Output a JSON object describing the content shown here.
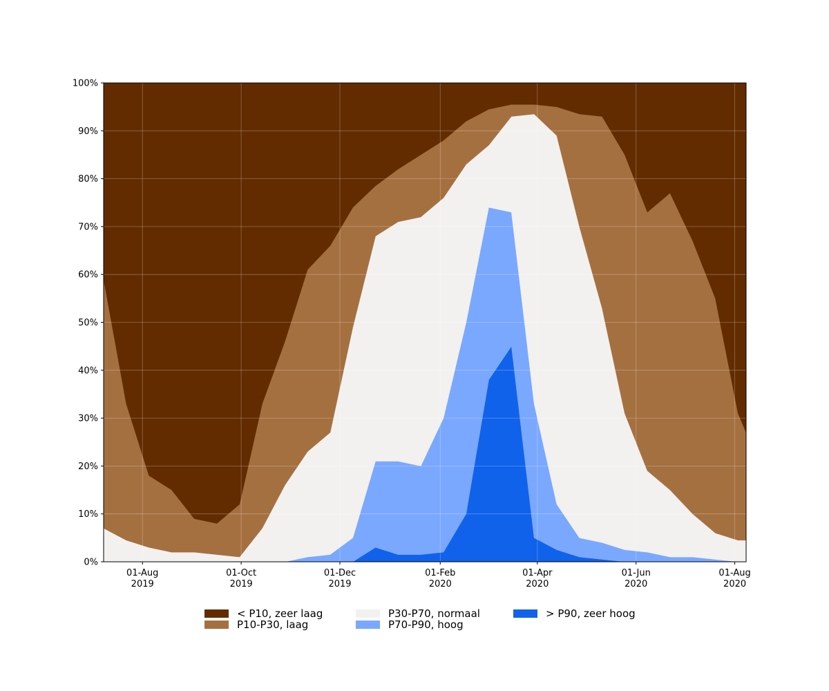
{
  "chart_data": {
    "type": "stacked-area",
    "x": [
      "2019-07-08",
      "2019-07-22",
      "2019-08-05",
      "2019-08-19",
      "2019-09-02",
      "2019-09-16",
      "2019-09-30",
      "2019-10-14",
      "2019-10-28",
      "2019-11-11",
      "2019-11-25",
      "2019-12-09",
      "2019-12-23",
      "2020-01-06",
      "2020-01-20",
      "2020-02-03",
      "2020-02-17",
      "2020-03-02",
      "2020-03-16",
      "2020-03-30",
      "2020-04-13",
      "2020-04-27",
      "2020-05-11",
      "2020-05-25",
      "2020-06-08",
      "2020-06-22",
      "2020-07-06",
      "2020-07-20",
      "2020-08-03",
      "2020-08-08"
    ],
    "series": [
      {
        "name": "> P90, zeer hoog",
        "color": "#1062ea",
        "values": [
          0,
          0,
          0,
          0,
          0,
          0,
          0,
          0,
          0,
          0,
          0,
          0,
          3,
          1.5,
          1.5,
          2,
          10,
          38,
          45,
          5,
          2.5,
          1,
          0.5,
          0,
          0,
          0,
          0,
          0,
          0,
          0
        ]
      },
      {
        "name": "P70-P90, hoog",
        "color": "#7aa8ff",
        "values": [
          0,
          0,
          0,
          0,
          0,
          0,
          0,
          0,
          0,
          1,
          1.5,
          5,
          18,
          19.5,
          18.5,
          28,
          40,
          36,
          28,
          28,
          9.5,
          4,
          3.5,
          2.5,
          2,
          1,
          1,
          0.5,
          0,
          0
        ]
      },
      {
        "name": "P30-P70, normaal",
        "color": "#f2f1f0",
        "values": [
          7,
          4.5,
          3,
          2,
          2,
          1.5,
          1,
          7,
          16,
          22,
          25.5,
          44,
          47,
          50,
          52,
          46,
          33,
          13,
          20,
          60.5,
          77,
          65,
          49,
          28.5,
          17,
          14,
          9,
          5.5,
          4.5,
          4.5
        ]
      },
      {
        "name": "P10-P30, laag",
        "color": "#a57040",
        "values": [
          52,
          28.5,
          15,
          13,
          7,
          6.5,
          11,
          26,
          30,
          38,
          39,
          25,
          10.5,
          11,
          13,
          12,
          9,
          7.5,
          2.5,
          2,
          6,
          23.5,
          40,
          54,
          54,
          62,
          57,
          49,
          26.5,
          22.5
        ]
      },
      {
        "name": "< P10, zeer laag",
        "color": "#622c00",
        "values": [
          41,
          67,
          82,
          85,
          91,
          92,
          88,
          67,
          54,
          39,
          34,
          26,
          21.5,
          18,
          15,
          12,
          8,
          5.5,
          4.5,
          4.5,
          5,
          6.5,
          7,
          15,
          27,
          23,
          33,
          45,
          69,
          73
        ]
      }
    ],
    "legend_order": [
      4,
      3,
      2,
      1,
      0
    ],
    "xlim": [
      "2019-07-08",
      "2020-08-08"
    ],
    "xticks": [
      {
        "value": "2019-08-01",
        "label": "01-Aug\n2019"
      },
      {
        "value": "2019-10-01",
        "label": "01-Oct\n2019"
      },
      {
        "value": "2019-12-01",
        "label": "01-Dec\n2019"
      },
      {
        "value": "2020-02-01",
        "label": "01-Feb\n2020"
      },
      {
        "value": "2020-04-01",
        "label": "01-Apr\n2020"
      },
      {
        "value": "2020-06-01",
        "label": "01-Jun\n2020"
      },
      {
        "value": "2020-08-01",
        "label": "01-Aug\n2020"
      }
    ],
    "ylim": [
      0,
      100
    ],
    "yticks": [
      {
        "value": 0,
        "label": "0%"
      },
      {
        "value": 10,
        "label": "10%"
      },
      {
        "value": 20,
        "label": "20%"
      },
      {
        "value": 30,
        "label": "30%"
      },
      {
        "value": 40,
        "label": "40%"
      },
      {
        "value": 50,
        "label": "50%"
      },
      {
        "value": 60,
        "label": "60%"
      },
      {
        "value": 70,
        "label": "70%"
      },
      {
        "value": 80,
        "label": "80%"
      },
      {
        "value": 90,
        "label": "90%"
      },
      {
        "value": 100,
        "label": "100%"
      }
    ],
    "grid": true,
    "legend": "lower center"
  }
}
